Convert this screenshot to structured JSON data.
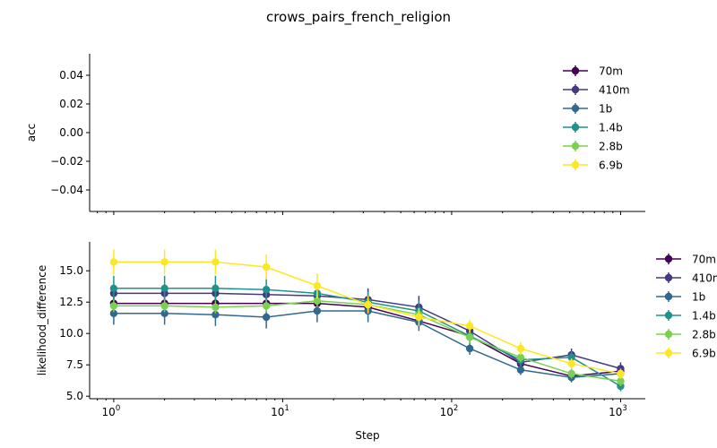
{
  "title": "crows_pairs_french_religion",
  "colors": {
    "70m": "#440154",
    "410m": "#443983",
    "1b": "#31688e",
    "1.4b": "#21918c",
    "2.8b": "#7ad151",
    "6.9b": "#fde725"
  },
  "chart_data": [
    {
      "type": "line",
      "panel": "top",
      "ylabel": "acc",
      "xlabel": "",
      "xscale": "log",
      "xlim": [
        0.72,
        1400
      ],
      "ylim": [
        -0.055,
        0.055
      ],
      "yticks": [
        {
          "value": 0.04,
          "label": "0.04"
        },
        {
          "value": 0.02,
          "label": "0.02"
        },
        {
          "value": 0.0,
          "label": "0.00"
        },
        {
          "value": -0.02,
          "label": "−0.02"
        },
        {
          "value": -0.04,
          "label": "−0.04"
        }
      ],
      "legend_position": "upper-right",
      "series": [
        {
          "name": "70m",
          "x": [],
          "y": []
        },
        {
          "name": "410m",
          "x": [],
          "y": []
        },
        {
          "name": "1b",
          "x": [],
          "y": []
        },
        {
          "name": "1.4b",
          "x": [],
          "y": []
        },
        {
          "name": "2.8b",
          "x": [],
          "y": []
        },
        {
          "name": "6.9b",
          "x": [],
          "y": []
        }
      ]
    },
    {
      "type": "line",
      "panel": "bottom",
      "ylabel": "likelihood_difference",
      "xlabel": "Step",
      "xscale": "log",
      "xlim": [
        0.72,
        1400
      ],
      "ylim": [
        4.8,
        17.3
      ],
      "yticks": [
        {
          "value": 15.0,
          "label": "15.0"
        },
        {
          "value": 12.5,
          "label": "12.5"
        },
        {
          "value": 10.0,
          "label": "10.0"
        },
        {
          "value": 7.5,
          "label": "7.5"
        },
        {
          "value": 5.0,
          "label": "5.0"
        }
      ],
      "xticks": [
        {
          "value": 1,
          "base": "10",
          "exp": "0"
        },
        {
          "value": 10,
          "base": "10",
          "exp": "1"
        },
        {
          "value": 100,
          "base": "10",
          "exp": "2"
        },
        {
          "value": 1000,
          "base": "10",
          "exp": "3"
        }
      ],
      "legend_position": "outside-right",
      "series": [
        {
          "name": "70m",
          "x": [
            1,
            2,
            4,
            8,
            16,
            32,
            64,
            128,
            256,
            512,
            1000
          ],
          "y": [
            12.4,
            12.4,
            12.4,
            12.4,
            12.4,
            12.1,
            11.0,
            9.8,
            7.6,
            6.6,
            7.0
          ],
          "err": [
            0.5,
            0.5,
            0.5,
            0.5,
            0.5,
            0.5,
            0.5,
            0.5,
            0.4,
            0.3,
            0.4
          ]
        },
        {
          "name": "410m",
          "x": [
            1,
            2,
            4,
            8,
            16,
            32,
            64,
            128,
            256,
            512,
            1000
          ],
          "y": [
            13.2,
            13.2,
            13.2,
            13.1,
            13.0,
            12.7,
            12.1,
            10.2,
            7.7,
            8.3,
            7.2
          ],
          "err": [
            0.7,
            0.7,
            0.7,
            0.7,
            0.7,
            0.9,
            0.9,
            0.7,
            0.5,
            0.5,
            0.5
          ]
        },
        {
          "name": "1b",
          "x": [
            1,
            2,
            4,
            8,
            16,
            32,
            64,
            128,
            256,
            512,
            1000
          ],
          "y": [
            11.6,
            11.6,
            11.5,
            11.3,
            11.8,
            11.8,
            10.9,
            8.8,
            7.1,
            6.5,
            6.8
          ],
          "err": [
            0.9,
            0.9,
            0.9,
            0.9,
            0.9,
            0.9,
            0.7,
            0.5,
            0.4,
            0.4,
            0.4
          ]
        },
        {
          "name": "1.4b",
          "x": [
            1,
            2,
            4,
            8,
            16,
            32,
            64,
            128,
            256,
            512,
            1000
          ],
          "y": [
            13.6,
            13.6,
            13.6,
            13.5,
            13.2,
            12.5,
            11.8,
            9.8,
            7.9,
            8.1,
            5.8
          ],
          "err": [
            1.0,
            1.0,
            1.0,
            1.0,
            0.8,
            0.8,
            0.8,
            0.6,
            0.5,
            0.5,
            0.4
          ]
        },
        {
          "name": "2.8b",
          "x": [
            1,
            2,
            4,
            8,
            16,
            32,
            64,
            128,
            256,
            512,
            1000
          ],
          "y": [
            12.2,
            12.2,
            12.1,
            12.2,
            12.6,
            12.3,
            11.5,
            9.7,
            8.1,
            6.8,
            6.2
          ],
          "err": [
            0.5,
            0.5,
            0.5,
            0.5,
            0.5,
            0.5,
            0.5,
            0.5,
            0.4,
            0.4,
            0.4
          ]
        },
        {
          "name": "6.9b",
          "x": [
            1,
            2,
            4,
            8,
            16,
            32,
            64,
            128,
            256,
            512,
            1000
          ],
          "y": [
            15.7,
            15.7,
            15.7,
            15.3,
            13.8,
            12.3,
            11.3,
            10.6,
            8.8,
            7.6,
            6.8
          ],
          "err": [
            1.0,
            1.0,
            1.0,
            1.0,
            1.0,
            0.7,
            0.7,
            0.5,
            0.5,
            0.4,
            0.4
          ]
        }
      ]
    }
  ]
}
